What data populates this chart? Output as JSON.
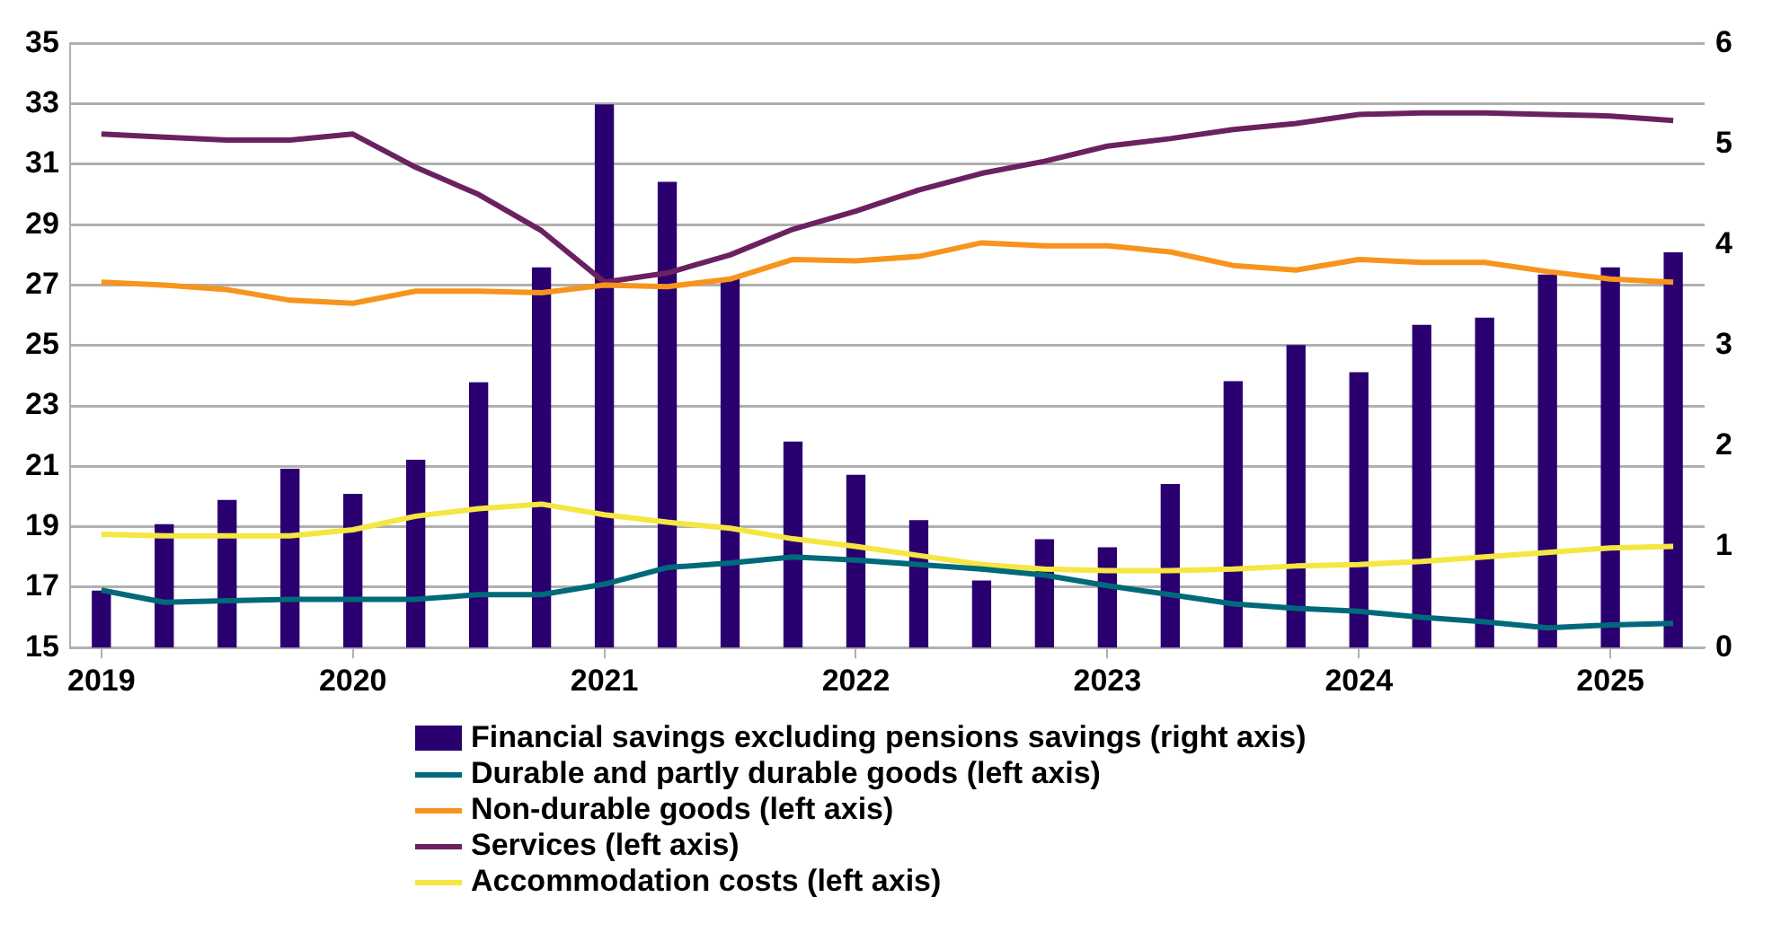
{
  "chart_data": {
    "type": "line",
    "categories": [
      "2019",
      null,
      null,
      null,
      "2020",
      null,
      null,
      null,
      "2021",
      null,
      null,
      null,
      "2022",
      null,
      null,
      null,
      "2023",
      null,
      null,
      null,
      "2024",
      null,
      null,
      null,
      "2025",
      null
    ],
    "series": [
      {
        "name": "Financial savings excluding pensions savings (right axis)",
        "type": "bar",
        "axis": "y2",
        "color": "#2a0070",
        "values": [
          0.56,
          1.22,
          1.46,
          1.77,
          1.52,
          1.86,
          2.63,
          3.77,
          5.39,
          4.62,
          3.66,
          2.04,
          1.71,
          1.26,
          0.66,
          1.07,
          0.99,
          1.62,
          2.64,
          3.0,
          2.73,
          3.2,
          3.27,
          3.7,
          3.77,
          3.92
        ]
      },
      {
        "name": "Durable and partly durable goods (left axis)",
        "color": "#00697a",
        "values": [
          16.9,
          16.5,
          16.55,
          16.6,
          16.6,
          16.6,
          16.75,
          16.75,
          17.1,
          17.65,
          17.8,
          18.0,
          17.9,
          17.75,
          17.6,
          17.4,
          17.05,
          16.75,
          16.45,
          16.3,
          16.2,
          16.0,
          15.85,
          15.65,
          15.75,
          15.8
        ]
      },
      {
        "name": "Non-durable goods (left axis)",
        "color": "#f7941d",
        "values": [
          27.1,
          27.0,
          26.85,
          26.5,
          26.4,
          26.8,
          26.8,
          26.75,
          27.0,
          26.95,
          27.2,
          27.85,
          27.8,
          27.95,
          28.4,
          28.3,
          28.3,
          28.1,
          27.65,
          27.5,
          27.85,
          27.75,
          27.75,
          27.45,
          27.2,
          27.1
        ]
      },
      {
        "name": "Services (left axis)",
        "color": "#6b2161",
        "values": [
          32.0,
          31.9,
          31.8,
          31.8,
          32.0,
          30.9,
          30.0,
          28.8,
          27.1,
          27.4,
          28.0,
          28.85,
          29.45,
          30.15,
          30.7,
          31.1,
          31.6,
          31.85,
          32.15,
          32.35,
          32.65,
          32.7,
          32.7,
          32.65,
          32.6,
          32.45
        ]
      },
      {
        "name": "Accommodation costs (left axis)",
        "color": "#f5e642",
        "values": [
          18.75,
          18.7,
          18.7,
          18.7,
          18.9,
          19.35,
          19.6,
          19.75,
          19.4,
          19.15,
          18.95,
          18.6,
          18.35,
          18.05,
          17.75,
          17.6,
          17.55,
          17.55,
          17.6,
          17.7,
          17.75,
          17.85,
          18.0,
          18.15,
          18.3,
          18.35
        ]
      }
    ],
    "ylim": [
      15,
      35
    ],
    "yticks": [
      15,
      17,
      19,
      21,
      23,
      25,
      27,
      29,
      31,
      33,
      35
    ],
    "y2lim": [
      0,
      6
    ],
    "y2ticks": [
      0,
      1,
      2,
      3,
      4,
      5,
      6
    ],
    "grid": "y",
    "legend": "bottom",
    "marker": "none",
    "line_style": "solid"
  }
}
